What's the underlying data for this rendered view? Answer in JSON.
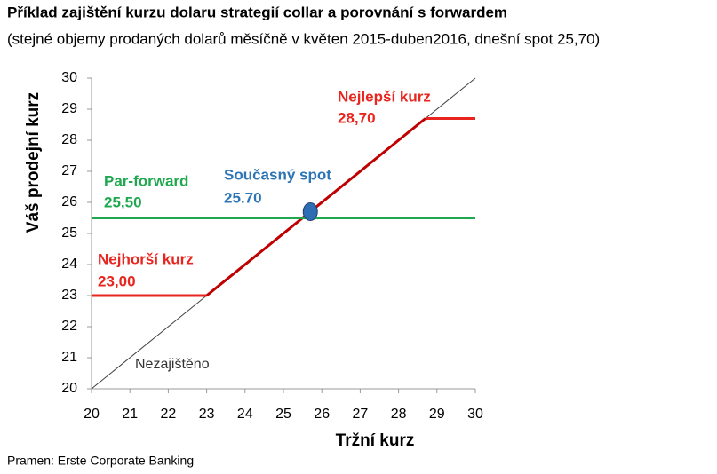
{
  "chart_data": {
    "type": "line",
    "title": "Příklad zajištění kurzu dolaru strategií collar a porovnání s forwardem",
    "subtitle": "(stejné objemy prodaných dolarů měsíčně v květen 2015-duben2016, dnešní spot 25,70)",
    "xlabel": "Tržní kurz",
    "ylabel": "Váš prodejní kurz",
    "source": "Pramen: Erste Corporate Banking",
    "xlim": [
      20,
      30
    ],
    "xticks": [
      20,
      21,
      22,
      23,
      24,
      25,
      26,
      27,
      28,
      29,
      30
    ],
    "ylim": [
      20,
      30
    ],
    "yticks": [
      20,
      21,
      22,
      23,
      24,
      25,
      26,
      27,
      28,
      29,
      30
    ],
    "series": [
      {
        "color": "#404040",
        "x": [
          20,
          30
        ],
        "values": [
          20,
          30
        ]
      },
      {
        "color": "#e8251f",
        "segment_colors": [
          "#e8251f",
          "#c00000",
          "#e8251f"
        ],
        "x": [
          20,
          23,
          28.7,
          30
        ],
        "values": [
          23,
          23,
          28.7,
          28.7
        ]
      },
      {
        "color": "#1fa84f",
        "x": [
          20,
          30
        ],
        "values": [
          25.5,
          25.5
        ]
      }
    ],
    "points": [
      {
        "color": "#2e6db4",
        "x": 25.7,
        "y": 25.7
      }
    ],
    "annotations": [
      {
        "text": "Nejlepší kurz",
        "color": "#e8251f"
      },
      {
        "text": "28,70",
        "color": "#e8251f"
      },
      {
        "text": "Par-forward",
        "color": "#1fa84f"
      },
      {
        "text": "25,50",
        "color": "#1fa84f"
      },
      {
        "text": "Současný spot",
        "color": "#2e75b6"
      },
      {
        "text": "25.70",
        "color": "#2e75b6"
      },
      {
        "text": "Nejhorší kurz",
        "color": "#e8251f"
      },
      {
        "text": "23,00",
        "color": "#e8251f"
      },
      {
        "text": "Nezajištěno",
        "color": "#333333"
      }
    ]
  }
}
